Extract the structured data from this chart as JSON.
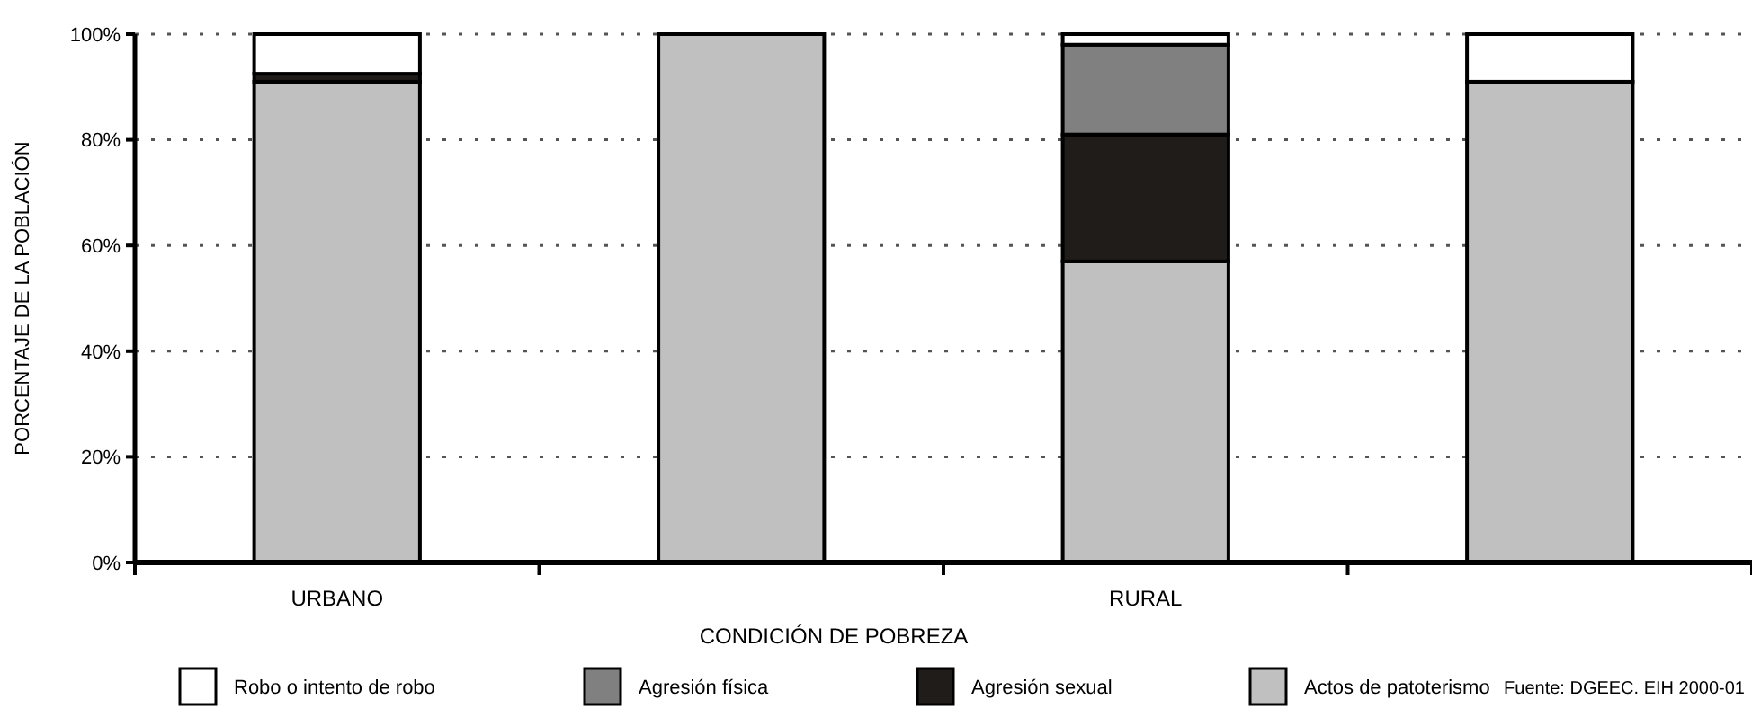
{
  "chart_data": {
    "type": "bar",
    "stacked": true,
    "xlabel": "CONDICIÓN DE POBREZA",
    "ylabel": "PORCENTAJE DE LA POBLACIÓN",
    "categories": [
      "URBANO",
      null,
      "RURAL",
      null
    ],
    "series": [
      {
        "name": "Actos de patoterismo",
        "color": "#c0c0c0",
        "values": [
          91,
          100,
          57,
          91
        ]
      },
      {
        "name": "Agresión sexual",
        "color": "#201c1a",
        "values": [
          1.5,
          0,
          24,
          0
        ]
      },
      {
        "name": "Agresión física",
        "color": "#808080",
        "values": [
          0,
          0,
          17,
          0
        ]
      },
      {
        "name": "Robo o intento de robo",
        "color": "#ffffff",
        "values": [
          7.5,
          0,
          2,
          9
        ]
      }
    ],
    "ylim": [
      0,
      100
    ],
    "yticks": [
      {
        "value": 0,
        "label": "0%"
      },
      {
        "value": 20,
        "label": "20%"
      },
      {
        "value": 40,
        "label": "40%"
      },
      {
        "value": 60,
        "label": "60%"
      },
      {
        "value": 80,
        "label": "80%"
      },
      {
        "value": 100,
        "label": "100%"
      }
    ],
    "grid": "y",
    "legend": "bottom",
    "annotations": [
      "Fuente: DGEEC. EIH 2000-01"
    ]
  }
}
